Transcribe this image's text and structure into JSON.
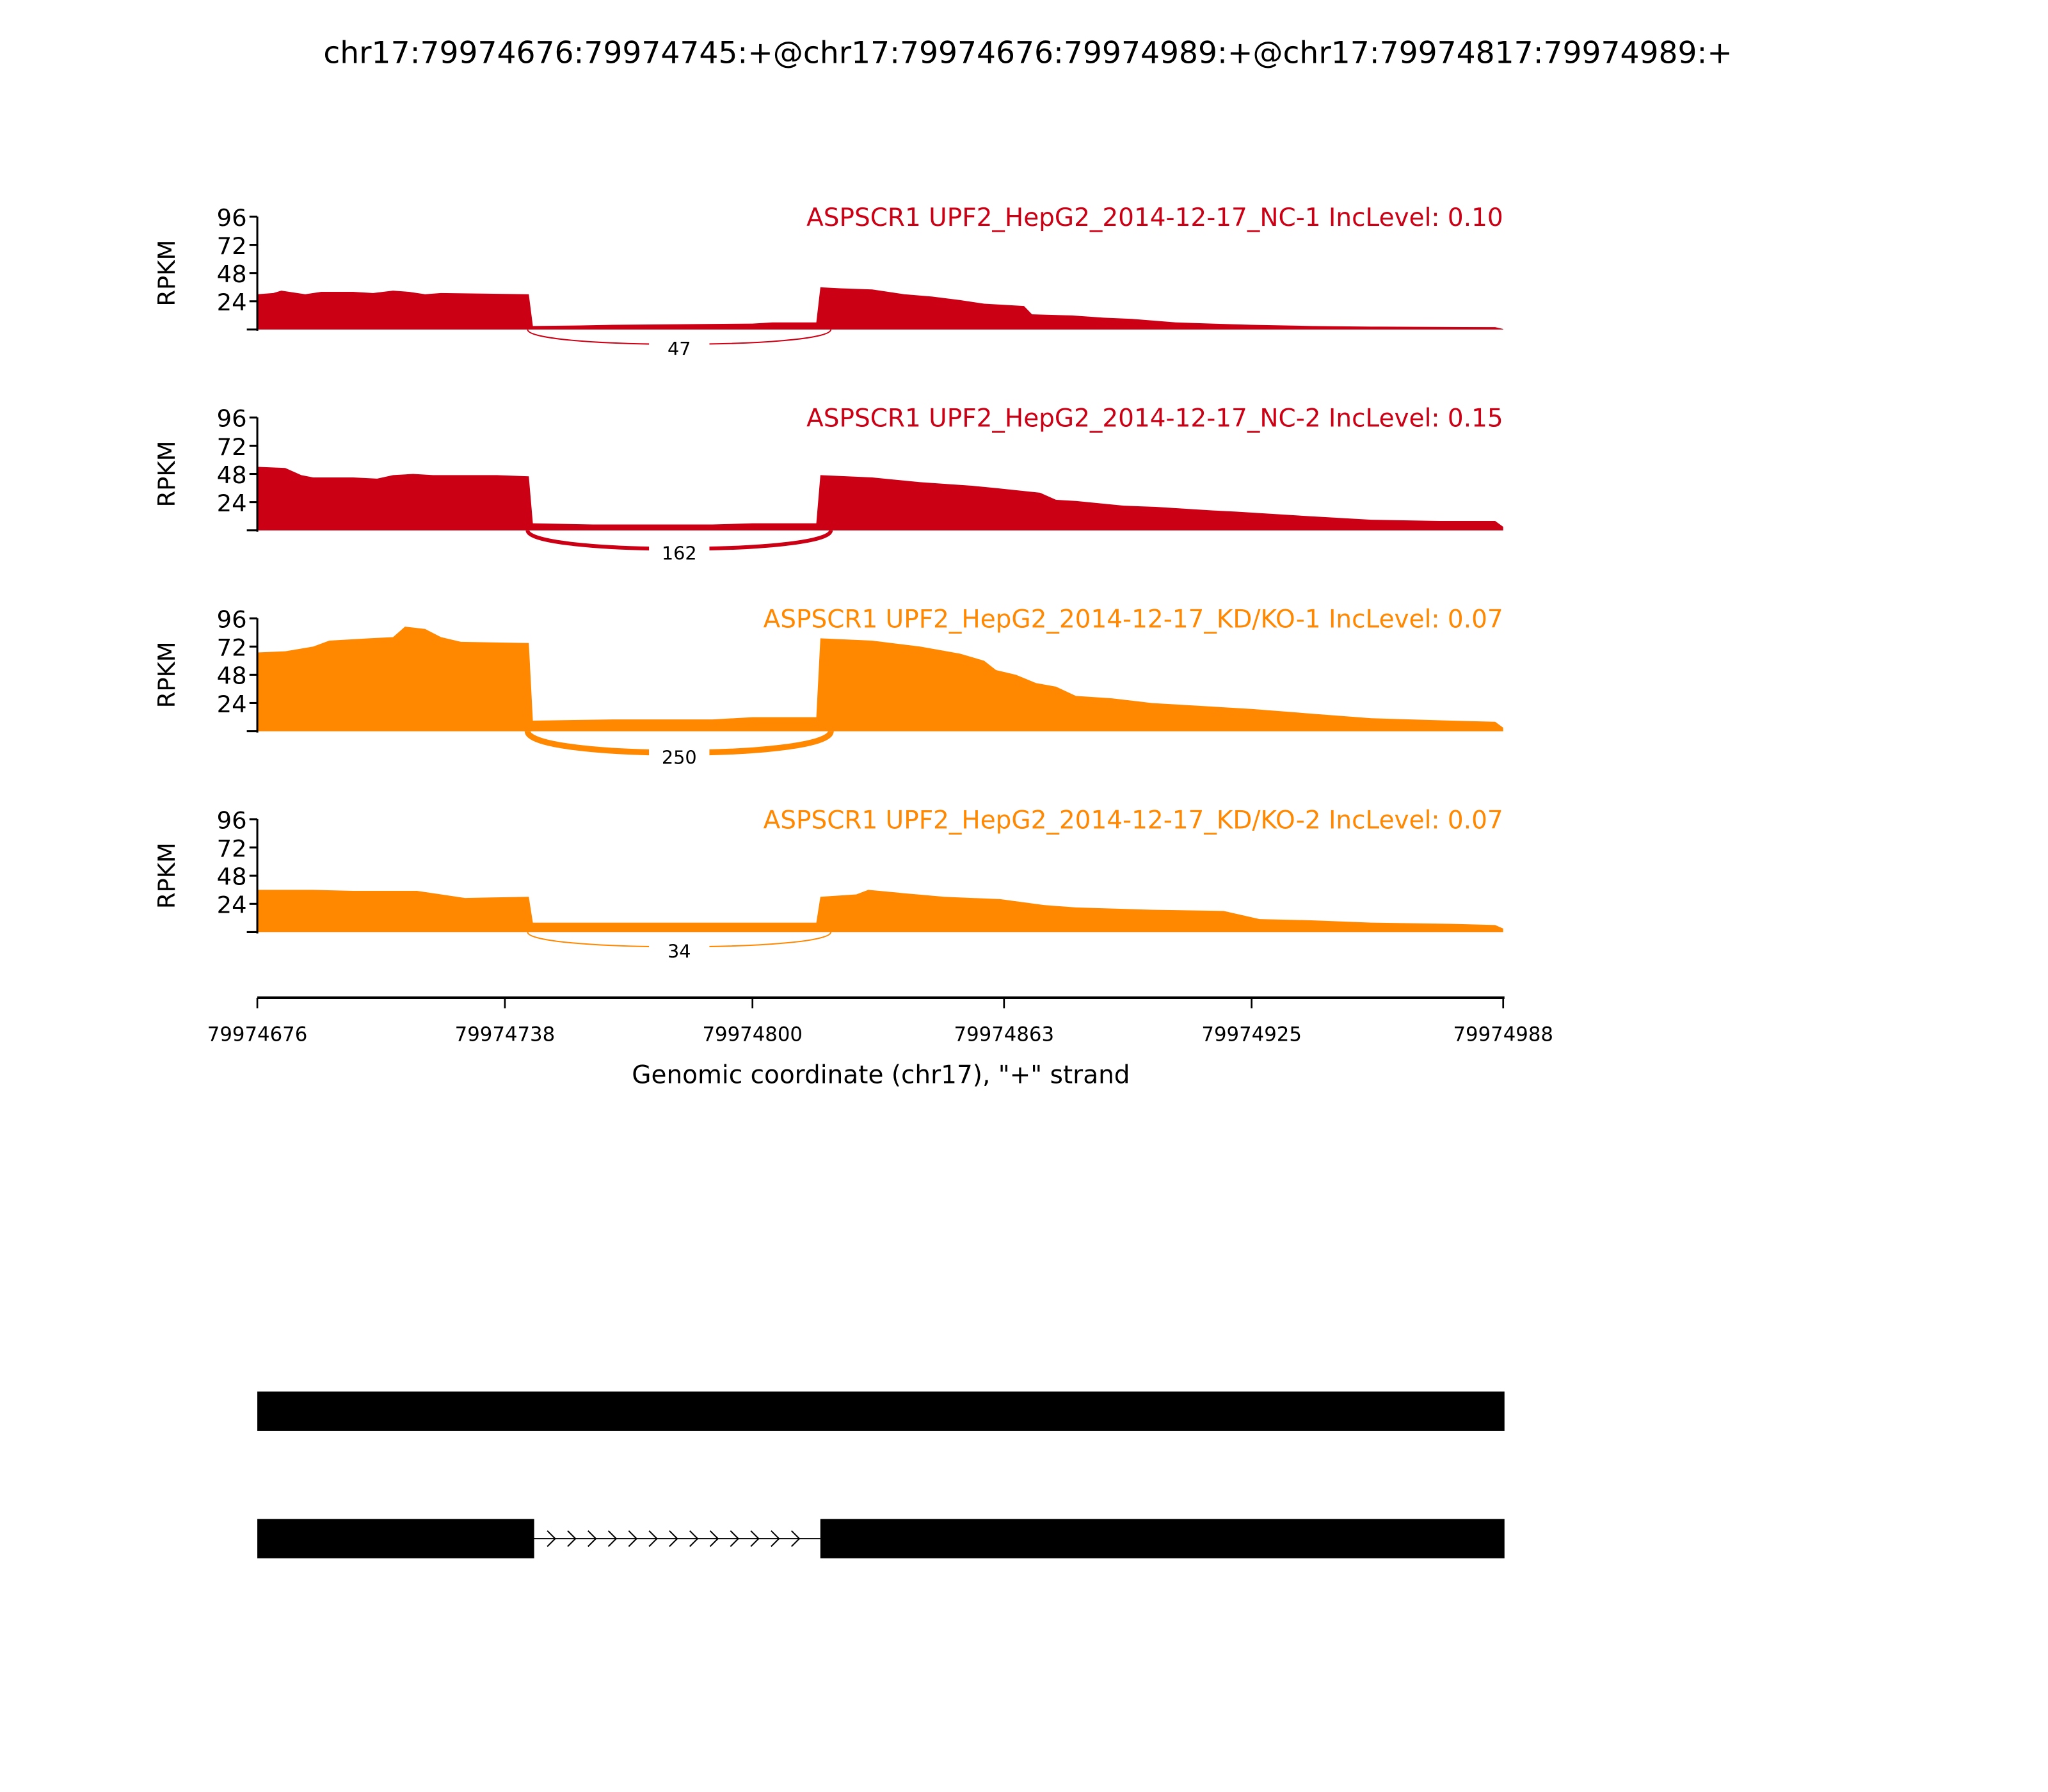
{
  "chart_data": {
    "type": "area",
    "title": "chr17:79974676:79974745:+@chr17:79974676:79974989:+@chr17:79974817:79974989:+",
    "xlabel": "Genomic coordinate (chr17), \"+\" strand",
    "ylabel": "RPKM",
    "xlim": [
      79974676,
      79974988
    ],
    "ylim": [
      0,
      96
    ],
    "yticks": [
      "24",
      "48",
      "72",
      "96"
    ],
    "xticks": [
      "79974676",
      "79974738",
      "79974800",
      "79974863",
      "79974925",
      "79974988"
    ],
    "junction": {
      "start": 79974745,
      "end": 79974817
    },
    "tracks": [
      {
        "label": "ASPSCR1 UPF2_HepG2_2014-12-17_NC-1 IncLevel: 0.10",
        "color": "#CC0014",
        "junction_count": "47",
        "coverage": [
          [
            79974676,
            30
          ],
          [
            79974680,
            31
          ],
          [
            79974682,
            33
          ],
          [
            79974688,
            30
          ],
          [
            79974692,
            32
          ],
          [
            79974700,
            32
          ],
          [
            79974705,
            31
          ],
          [
            79974710,
            33
          ],
          [
            79974714,
            32
          ],
          [
            79974718,
            30
          ],
          [
            79974722,
            31
          ],
          [
            79974744,
            30
          ],
          [
            79974745,
            3
          ],
          [
            79974757,
            3.5
          ],
          [
            79974765,
            4
          ],
          [
            79974800,
            5
          ],
          [
            79974805,
            6
          ],
          [
            79974816,
            6
          ],
          [
            79974817,
            36
          ],
          [
            79974822,
            35
          ],
          [
            79974830,
            34
          ],
          [
            79974838,
            30
          ],
          [
            79974845,
            28
          ],
          [
            79974852,
            25
          ],
          [
            79974858,
            22
          ],
          [
            79974868,
            20
          ],
          [
            79974870,
            13
          ],
          [
            79974880,
            12
          ],
          [
            79974888,
            10
          ],
          [
            79974895,
            9
          ],
          [
            79974906,
            6
          ],
          [
            79974915,
            5
          ],
          [
            79974925,
            4
          ],
          [
            79974940,
            3
          ],
          [
            79974955,
            2.5
          ],
          [
            79974986,
            2
          ],
          [
            79974988,
            0.5
          ]
        ]
      },
      {
        "label": "ASPSCR1 UPF2_HepG2_2014-12-17_NC-2 IncLevel: 0.15",
        "color": "#CC0014",
        "junction_count": "162",
        "coverage": [
          [
            79974676,
            54
          ],
          [
            79974683,
            53
          ],
          [
            79974687,
            47
          ],
          [
            79974690,
            45
          ],
          [
            79974700,
            45
          ],
          [
            79974706,
            44
          ],
          [
            79974710,
            47
          ],
          [
            79974715,
            48
          ],
          [
            79974720,
            47
          ],
          [
            79974736,
            47
          ],
          [
            79974744,
            46
          ],
          [
            79974745,
            6
          ],
          [
            79974760,
            5
          ],
          [
            79974790,
            5
          ],
          [
            79974800,
            6
          ],
          [
            79974816,
            6
          ],
          [
            79974817,
            47
          ],
          [
            79974830,
            45
          ],
          [
            79974842,
            41
          ],
          [
            79974855,
            38
          ],
          [
            79974861,
            36
          ],
          [
            79974872,
            32
          ],
          [
            79974876,
            26
          ],
          [
            79974881,
            25
          ],
          [
            79974893,
            21
          ],
          [
            79974901,
            20
          ],
          [
            79974915,
            17
          ],
          [
            79974921,
            16
          ],
          [
            79974940,
            12
          ],
          [
            79974955,
            9
          ],
          [
            79974972,
            8
          ],
          [
            79974986,
            8
          ],
          [
            79974988,
            3
          ]
        ]
      },
      {
        "label": "ASPSCR1 UPF2_HepG2_2014-12-17_KD/KO-1 IncLevel: 0.07",
        "color": "#FF8800",
        "junction_count": "250",
        "coverage": [
          [
            79974676,
            67
          ],
          [
            79974683,
            68
          ],
          [
            79974690,
            72
          ],
          [
            79974694,
            77
          ],
          [
            79974704,
            79
          ],
          [
            79974710,
            80
          ],
          [
            79974713,
            89
          ],
          [
            79974718,
            87
          ],
          [
            79974722,
            80
          ],
          [
            79974727,
            76
          ],
          [
            79974744,
            75
          ],
          [
            79974745,
            9
          ],
          [
            79974765,
            10
          ],
          [
            79974790,
            10
          ],
          [
            79974800,
            12
          ],
          [
            79974816,
            12
          ],
          [
            79974817,
            79
          ],
          [
            79974830,
            77
          ],
          [
            79974842,
            72
          ],
          [
            79974852,
            66
          ],
          [
            79974858,
            60
          ],
          [
            79974861,
            52
          ],
          [
            79974866,
            48
          ],
          [
            79974871,
            41
          ],
          [
            79974876,
            38
          ],
          [
            79974881,
            30
          ],
          [
            79974890,
            28
          ],
          [
            79974900,
            24
          ],
          [
            79974915,
            21
          ],
          [
            79974925,
            19
          ],
          [
            79974940,
            15
          ],
          [
            79974955,
            11
          ],
          [
            79974975,
            9
          ],
          [
            79974986,
            8
          ],
          [
            79974988,
            3
          ]
        ]
      },
      {
        "label": "ASPSCR1 UPF2_HepG2_2014-12-17_KD/KO-2 IncLevel: 0.07",
        "color": "#FF8800",
        "junction_count": "34",
        "coverage": [
          [
            79974676,
            36
          ],
          [
            79974690,
            36
          ],
          [
            79974700,
            35
          ],
          [
            79974716,
            35
          ],
          [
            79974722,
            32
          ],
          [
            79974728,
            29
          ],
          [
            79974744,
            30
          ],
          [
            79974745,
            8
          ],
          [
            79974790,
            8
          ],
          [
            79974816,
            8
          ],
          [
            79974817,
            30
          ],
          [
            79974826,
            32
          ],
          [
            79974829,
            36
          ],
          [
            79974838,
            33
          ],
          [
            79974848,
            30
          ],
          [
            79974862,
            28
          ],
          [
            79974873,
            23
          ],
          [
            79974881,
            21
          ],
          [
            79974900,
            19
          ],
          [
            79974918,
            18
          ],
          [
            79974927,
            11
          ],
          [
            79974940,
            10
          ],
          [
            79974955,
            8
          ],
          [
            79974975,
            7
          ],
          [
            79974986,
            6
          ],
          [
            79974988,
            3
          ]
        ]
      }
    ],
    "transcripts": [
      {
        "exons": [
          [
            79974676,
            79974988
          ]
        ]
      },
      {
        "exons": [
          [
            79974676,
            79974745
          ],
          [
            79974817,
            79974988
          ]
        ]
      }
    ]
  }
}
